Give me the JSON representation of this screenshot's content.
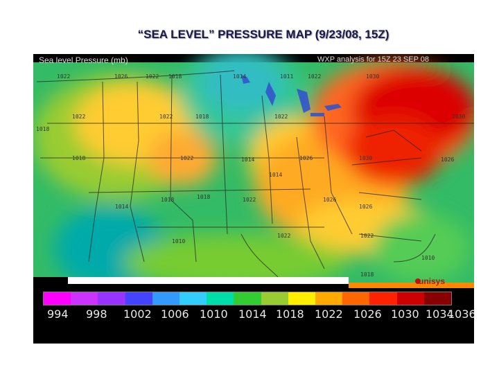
{
  "title": "“SEA LEVEL” PRESSURE MAP (9/23/08, 15Z)",
  "map": {
    "header_left": "Sea level Pressure (mb)",
    "header_right": "WXP analysis for 15Z 23 SEP 08",
    "brand": "unisys",
    "isobar_labels": [
      "1022",
      "1026",
      "1022",
      "1018",
      "1014",
      "1011",
      "1022",
      "1030",
      "1022",
      "1022",
      "1018",
      "1018",
      "1022",
      "1018",
      "1022",
      "1026",
      "1030",
      "1030",
      "1026",
      "1018",
      "1018",
      "1014",
      "1022",
      "1026",
      "1026",
      "1014",
      "1010",
      "1022",
      "1022",
      "1018",
      "1014",
      "1010"
    ]
  },
  "legend": {
    "values": [
      "994",
      "998",
      "1002",
      "1006",
      "1010",
      "1014",
      "1018",
      "1022",
      "1026",
      "1030",
      "1034",
      "1036"
    ],
    "colors": [
      "#ff00ff",
      "#cc33ff",
      "#9933ff",
      "#4444ff",
      "#3399ff",
      "#33ccff",
      "#00ddaa",
      "#33cc33",
      "#99cc33",
      "#ffee00",
      "#ffaa00",
      "#ff6600",
      "#ff2200",
      "#cc0000",
      "#880000"
    ]
  }
}
